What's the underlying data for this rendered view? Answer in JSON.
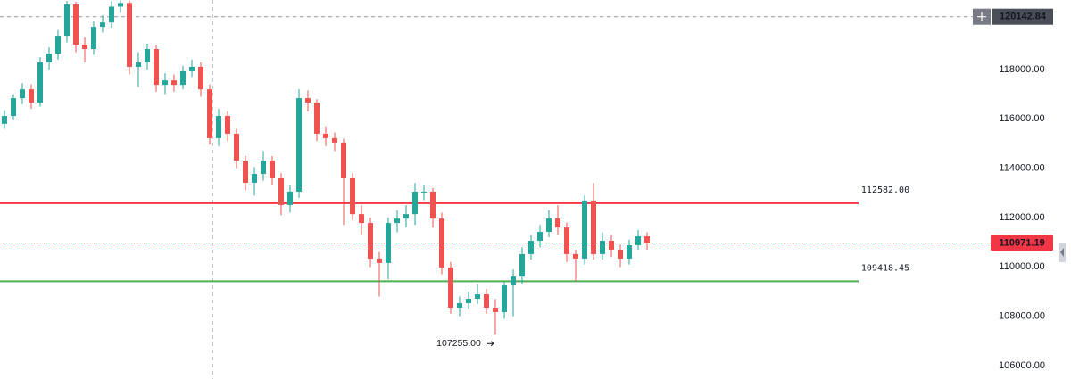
{
  "chart_data": {
    "type": "candlestick",
    "up_color": "#26a69a",
    "down_color": "#ef5350",
    "grid": false,
    "ylim": [
      105458,
      120819
    ],
    "yticks": [
      {
        "value": 106000,
        "label": "106000.00"
      },
      {
        "value": 108000,
        "label": "108000.00"
      },
      {
        "value": 110000,
        "label": "110000.00"
      },
      {
        "value": 112000,
        "label": "112000.00"
      },
      {
        "value": 114000,
        "label": "114000.00"
      },
      {
        "value": 116000,
        "label": "116000.00"
      },
      {
        "value": 118000,
        "label": "118000.00"
      }
    ],
    "open": [
      115800,
      116120,
      116840,
      117200,
      116660,
      118290,
      118650,
      119370,
      120640,
      119010,
      118830,
      119730,
      119910,
      120550,
      120700,
      118110,
      118290,
      118830,
      117380,
      117560,
      117380,
      117930,
      118110,
      117200,
      115220,
      116120,
      115400,
      114310,
      113410,
      113770,
      114310,
      113590,
      112510,
      113050,
      116840,
      116660,
      115400,
      115220,
      115040,
      113590,
      112140,
      111780,
      110340,
      110160,
      111780,
      111960,
      112140,
      113050,
      113050,
      111960,
      109980,
      108350,
      108530,
      108710,
      108890,
      108350,
      108170,
      109250,
      109610,
      110520,
      111060,
      111420,
      111960,
      111600,
      110520,
      110340,
      112690,
      110520,
      111060,
      110700,
      110340,
      110880,
      111240
    ],
    "high": [
      116350,
      117000,
      117450,
      117400,
      118500,
      118900,
      119600,
      120780,
      120750,
      119300,
      119950,
      120200,
      120780,
      120800,
      120800,
      118700,
      119050,
      119000,
      117850,
      117800,
      118150,
      118400,
      118300,
      117400,
      116400,
      116300,
      115600,
      114500,
      114050,
      114700,
      114500,
      113800,
      113300,
      117200,
      117150,
      116800,
      115700,
      115450,
      115200,
      113800,
      112500,
      112000,
      110600,
      112000,
      112300,
      112500,
      113400,
      113300,
      113200,
      112200,
      110200,
      108800,
      109000,
      109300,
      109100,
      108700,
      109400,
      109900,
      110800,
      111300,
      111700,
      112300,
      112500,
      111800,
      110700,
      112900,
      113400,
      111400,
      111300,
      110900,
      111100,
      111500,
      111400
    ],
    "low": [
      115600,
      115950,
      116600,
      116400,
      116500,
      118000,
      118400,
      119100,
      118700,
      118300,
      118600,
      119500,
      119700,
      120300,
      117800,
      117300,
      118000,
      117100,
      117000,
      117100,
      117200,
      117700,
      116900,
      114950,
      114900,
      115100,
      114000,
      113100,
      112900,
      113500,
      113300,
      112100,
      112200,
      112800,
      116300,
      115100,
      114900,
      114700,
      111700,
      111900,
      111300,
      110000,
      108800,
      109500,
      111400,
      111600,
      111700,
      112700,
      111600,
      109700,
      108100,
      108000,
      108300,
      108500,
      108100,
      107255,
      107900,
      108000,
      109300,
      110300,
      110800,
      111200,
      111300,
      110200,
      109400,
      110100,
      110300,
      110300,
      110400,
      110000,
      110100,
      110700,
      110700
    ],
    "close": [
      116120,
      116840,
      117200,
      116660,
      118290,
      118650,
      119370,
      120640,
      119010,
      118830,
      119730,
      119910,
      120550,
      120700,
      118110,
      118290,
      118830,
      117380,
      117560,
      117380,
      117930,
      118110,
      117200,
      115220,
      116120,
      115400,
      114310,
      113410,
      113770,
      114310,
      113590,
      112510,
      113050,
      116840,
      116660,
      115400,
      115220,
      115040,
      113590,
      112140,
      111780,
      110340,
      110160,
      111780,
      111960,
      112140,
      113050,
      113050,
      111960,
      109980,
      108350,
      108530,
      108710,
      108890,
      108350,
      108170,
      109250,
      109610,
      110520,
      111060,
      111420,
      111960,
      111600,
      110520,
      110340,
      112690,
      110520,
      111060,
      110700,
      110340,
      110880,
      111240,
      110971.19
    ],
    "levels": [
      {
        "value": 112582,
        "label": "112582.00",
        "color": "#f23645"
      },
      {
        "value": 109418.45,
        "label": "109418.45",
        "color": "#4caf50"
      }
    ],
    "last_price": {
      "value": 110971.19,
      "label": "110971.19",
      "color": "#f23645"
    },
    "crosshair_price": {
      "value": 120142.84,
      "label": "120142.84"
    },
    "low_annotation": {
      "value": 107255,
      "label": "107255.00"
    }
  }
}
